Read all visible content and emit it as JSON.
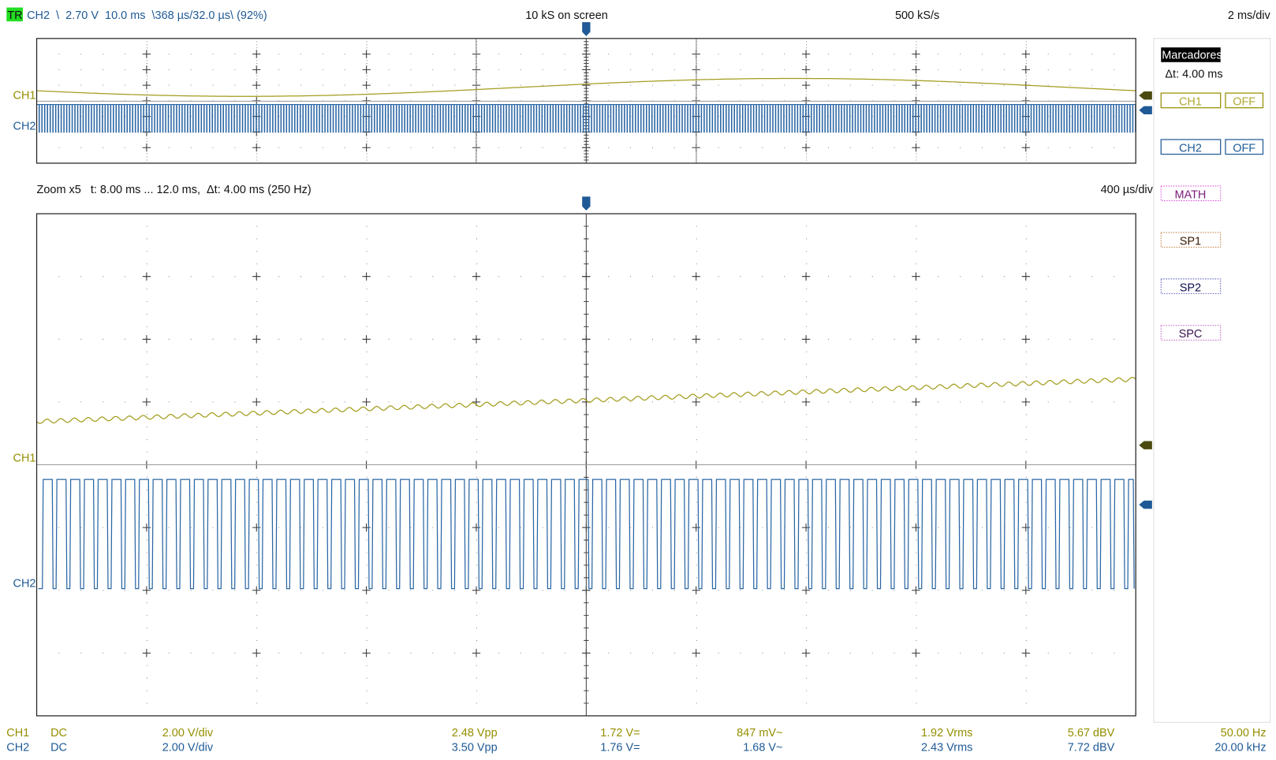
{
  "header": {
    "trigger_badge": "TR",
    "trigger_info": "CH2  \\  2.70 V  10.0 ms  \\368 µs/32.0 µs\\ (92%)",
    "samples_on_screen": "10 kS on screen",
    "sample_rate": "500 kS/s",
    "timebase": "2 ms/div"
  },
  "main_plot": {
    "ch1_label": "CH1",
    "ch2_label": "CH2"
  },
  "zoom": {
    "info": "Zoom x5   t: 8.00 ms ... 12.0 ms,  Δt: 4.00 ms (250 Hz)",
    "timebase": "400 µs/div",
    "ch1_label": "CH1",
    "ch2_label": "CH2"
  },
  "markers_panel": {
    "title": "Marcadores",
    "delta_t": "Δt: 4.00 ms",
    "ch1_button": "CH1",
    "ch1_off": "OFF",
    "ch2_button": "CH2",
    "ch2_off": "OFF",
    "math_button": "MATH",
    "sp1_button": "SP1",
    "sp2_button": "SP2",
    "spc_button": "SPC"
  },
  "measurements": [
    {
      "channel": "CH1",
      "coupling": "DC",
      "scale": "2.00 V/div",
      "vpp": "2.48 Vpp",
      "vdc": "1.72 V=",
      "vac": "847 mV~",
      "vrms": "1.92 Vrms",
      "dbv": "5.67 dBV",
      "freq": "50.00 Hz"
    },
    {
      "channel": "CH2",
      "coupling": "DC",
      "scale": "2.00 V/div",
      "vpp": "3.50 Vpp",
      "vdc": "1.76 V=",
      "vac": "1.68 V~",
      "vrms": "2.43 Vrms",
      "dbv": "7.72 dBV",
      "freq": "20.00 kHz"
    }
  ],
  "colors": {
    "ch1": "#958f00",
    "ch2": "#1f5a96",
    "trigger_badge": "#22dd22",
    "math": "#cc44cc",
    "sp1": "#c08040",
    "sp2": "#6060c0",
    "spc": "#c060c0"
  }
}
